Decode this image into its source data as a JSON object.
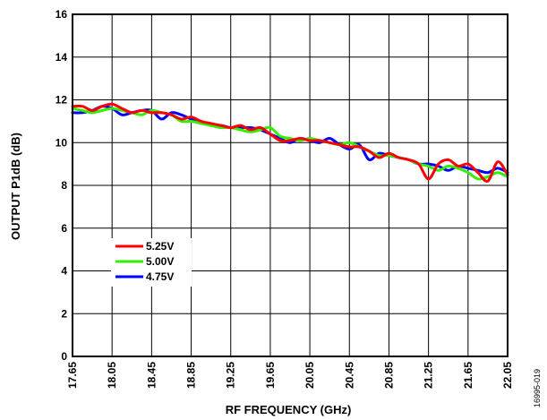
{
  "chart_data": {
    "type": "line",
    "title": "",
    "xlabel": "RF FREQUENCY (GHz)",
    "ylabel": "OUTPUT P1dB (dB)",
    "xlim": [
      17.65,
      22.05
    ],
    "ylim": [
      0,
      16
    ],
    "x_ticks": [
      "17.65",
      "18.05",
      "18.45",
      "18.85",
      "19.25",
      "19.65",
      "20.05",
      "20.45",
      "20.85",
      "21.25",
      "21.65",
      "22.05"
    ],
    "y_ticks": [
      "0",
      "2",
      "4",
      "6",
      "8",
      "10",
      "12",
      "14",
      "16"
    ],
    "grid": true,
    "legend_position": "lower-left",
    "figure_id": "16995-019",
    "series": [
      {
        "name": "4.75V",
        "color": "#0000ff",
        "x": [
          17.65,
          17.75,
          17.85,
          17.95,
          18.05,
          18.15,
          18.25,
          18.35,
          18.45,
          18.55,
          18.65,
          18.75,
          18.85,
          18.95,
          19.05,
          19.15,
          19.25,
          19.35,
          19.45,
          19.55,
          19.65,
          19.75,
          19.85,
          19.95,
          20.05,
          20.15,
          20.25,
          20.35,
          20.45,
          20.55,
          20.65,
          20.75,
          20.85,
          20.95,
          21.05,
          21.15,
          21.25,
          21.35,
          21.45,
          21.55,
          21.65,
          21.75,
          21.85,
          21.95,
          22.05
        ],
        "values": [
          11.4,
          11.4,
          11.5,
          11.7,
          11.6,
          11.3,
          11.4,
          11.5,
          11.5,
          11.1,
          11.4,
          11.3,
          11.1,
          11.0,
          10.8,
          10.8,
          10.7,
          10.7,
          10.7,
          10.6,
          10.4,
          10.2,
          10.0,
          10.2,
          10.1,
          10.0,
          10.2,
          9.9,
          9.7,
          9.9,
          9.2,
          9.5,
          9.4,
          9.3,
          9.2,
          9.0,
          9.0,
          8.9,
          8.7,
          8.9,
          8.8,
          8.7,
          8.6,
          8.8,
          8.6
        ]
      },
      {
        "name": "5.00V",
        "color": "#33ee00",
        "x": [
          17.65,
          17.75,
          17.85,
          17.95,
          18.05,
          18.15,
          18.25,
          18.35,
          18.45,
          18.55,
          18.65,
          18.75,
          18.85,
          18.95,
          19.05,
          19.15,
          19.25,
          19.35,
          19.45,
          19.55,
          19.65,
          19.75,
          19.85,
          19.95,
          20.05,
          20.15,
          20.25,
          20.35,
          20.45,
          20.55,
          20.65,
          20.75,
          20.85,
          20.95,
          21.05,
          21.15,
          21.25,
          21.35,
          21.45,
          21.55,
          21.65,
          21.75,
          21.85,
          21.95,
          22.05
        ],
        "values": [
          11.6,
          11.5,
          11.4,
          11.5,
          11.6,
          11.5,
          11.4,
          11.3,
          11.5,
          11.4,
          11.3,
          11.0,
          11.0,
          10.9,
          10.8,
          10.7,
          10.7,
          10.6,
          10.5,
          10.6,
          10.7,
          10.3,
          10.2,
          10.1,
          10.2,
          10.1,
          10.0,
          9.9,
          10.0,
          9.8,
          9.6,
          9.4,
          9.4,
          9.3,
          9.2,
          9.0,
          8.9,
          8.7,
          8.9,
          8.8,
          8.6,
          8.3,
          8.4,
          8.6,
          8.4
        ]
      },
      {
        "name": "5.25V",
        "color": "#ff0000",
        "x": [
          17.65,
          17.75,
          17.85,
          17.95,
          18.05,
          18.15,
          18.25,
          18.35,
          18.45,
          18.55,
          18.65,
          18.75,
          18.85,
          18.95,
          19.05,
          19.15,
          19.25,
          19.35,
          19.45,
          19.55,
          19.65,
          19.75,
          19.85,
          19.95,
          20.05,
          20.15,
          20.25,
          20.35,
          20.45,
          20.55,
          20.65,
          20.75,
          20.85,
          20.95,
          21.05,
          21.15,
          21.25,
          21.35,
          21.45,
          21.55,
          21.65,
          21.75,
          21.85,
          21.95,
          22.05
        ],
        "values": [
          11.7,
          11.7,
          11.5,
          11.7,
          11.8,
          11.6,
          11.4,
          11.5,
          11.4,
          11.4,
          11.3,
          11.1,
          11.2,
          11.0,
          10.9,
          10.8,
          10.7,
          10.8,
          10.6,
          10.7,
          10.4,
          10.1,
          10.1,
          10.2,
          10.1,
          10.1,
          10.0,
          9.9,
          9.8,
          9.8,
          9.6,
          9.3,
          9.5,
          9.3,
          9.2,
          9.0,
          8.3,
          9.0,
          9.2,
          8.9,
          9.0,
          8.6,
          8.2,
          9.1,
          8.5
        ]
      }
    ],
    "legend_order": [
      "5.25V",
      "5.00V",
      "4.75V"
    ]
  }
}
